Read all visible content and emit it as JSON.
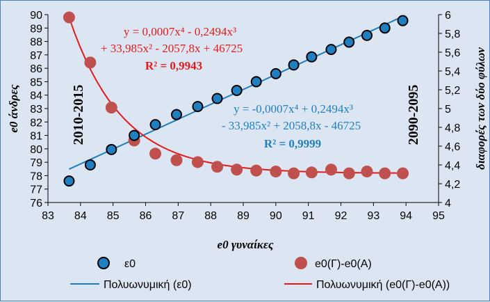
{
  "chart_data": {
    "type": "scatter",
    "x_axis": {
      "label": "e0 γυναίκες",
      "min": 83,
      "max": 95,
      "ticks": [
        "83",
        "84",
        "85",
        "86",
        "87",
        "88",
        "89",
        "90",
        "91",
        "92",
        "93",
        "94",
        "95"
      ]
    },
    "y_axis_left": {
      "label": "e0 άνδρες",
      "min": 76,
      "max": 90,
      "ticks": [
        "76",
        "77",
        "78",
        "79",
        "80",
        "81",
        "82",
        "83",
        "84",
        "85",
        "86",
        "87",
        "88",
        "89",
        "90"
      ]
    },
    "y_axis_right": {
      "label": "διαφορές των δύο φύλων",
      "min": 4,
      "max": 6,
      "ticks": [
        "4",
        "4,2",
        "4,4",
        "4,6",
        "4,8",
        "5",
        "5,2",
        "5,4",
        "5,6",
        "5,8",
        "6"
      ]
    },
    "grid": false,
    "legend_position": "bottom",
    "series": [
      {
        "name": "ε0",
        "axis": "left",
        "color": "#1f7fc0",
        "points": [
          [
            83.65,
            77.6
          ],
          [
            84.3,
            78.8
          ],
          [
            84.95,
            79.95
          ],
          [
            85.65,
            81.0
          ],
          [
            86.3,
            81.8
          ],
          [
            86.95,
            82.55
          ],
          [
            87.6,
            83.15
          ],
          [
            88.2,
            83.75
          ],
          [
            88.8,
            84.35
          ],
          [
            89.4,
            85.0
          ],
          [
            90.0,
            85.6
          ],
          [
            90.55,
            86.25
          ],
          [
            91.1,
            86.85
          ],
          [
            91.7,
            87.4
          ],
          [
            92.25,
            87.95
          ],
          [
            92.8,
            88.45
          ],
          [
            93.35,
            89.0
          ],
          [
            93.9,
            89.55
          ]
        ]
      },
      {
        "name": "e0(Γ)-e0(Α)",
        "axis": "right",
        "color": "#c0504d",
        "points": [
          [
            83.65,
            5.97
          ],
          [
            84.3,
            5.49
          ],
          [
            84.95,
            5.01
          ],
          [
            85.65,
            4.66
          ],
          [
            86.3,
            4.52
          ],
          [
            86.95,
            4.45
          ],
          [
            87.6,
            4.43
          ],
          [
            88.2,
            4.38
          ],
          [
            88.8,
            4.35
          ],
          [
            89.4,
            4.34
          ],
          [
            90.0,
            4.33
          ],
          [
            90.55,
            4.31
          ],
          [
            91.1,
            4.32
          ],
          [
            91.7,
            4.35
          ],
          [
            92.25,
            4.31
          ],
          [
            92.8,
            4.33
          ],
          [
            93.35,
            4.31
          ],
          [
            93.9,
            4.31
          ]
        ]
      }
    ],
    "trendlines": [
      {
        "name": "Πολυωνυμική (ε0)",
        "color": "#1f7fc0"
      },
      {
        "name": "Πολυωνυμική (e0(Γ)-e0(Α))",
        "color": "#e41a1c"
      }
    ],
    "annotations": {
      "red_eq_line1": "y = 0,0007x⁴ - 0,2494x³",
      "red_eq_line2": "+ 33,985x² - 2057,8x + 46725",
      "red_r2": "R² = 0,9943",
      "blue_eq_line1": "y = -0,0007x⁴ + 0,2494x³",
      "blue_eq_line2": "- 33,985x² + 2058,8x - 46725",
      "blue_r2": "R² = 0,9999",
      "period_start": "2010-2015",
      "period_end": "2090-2095"
    }
  }
}
